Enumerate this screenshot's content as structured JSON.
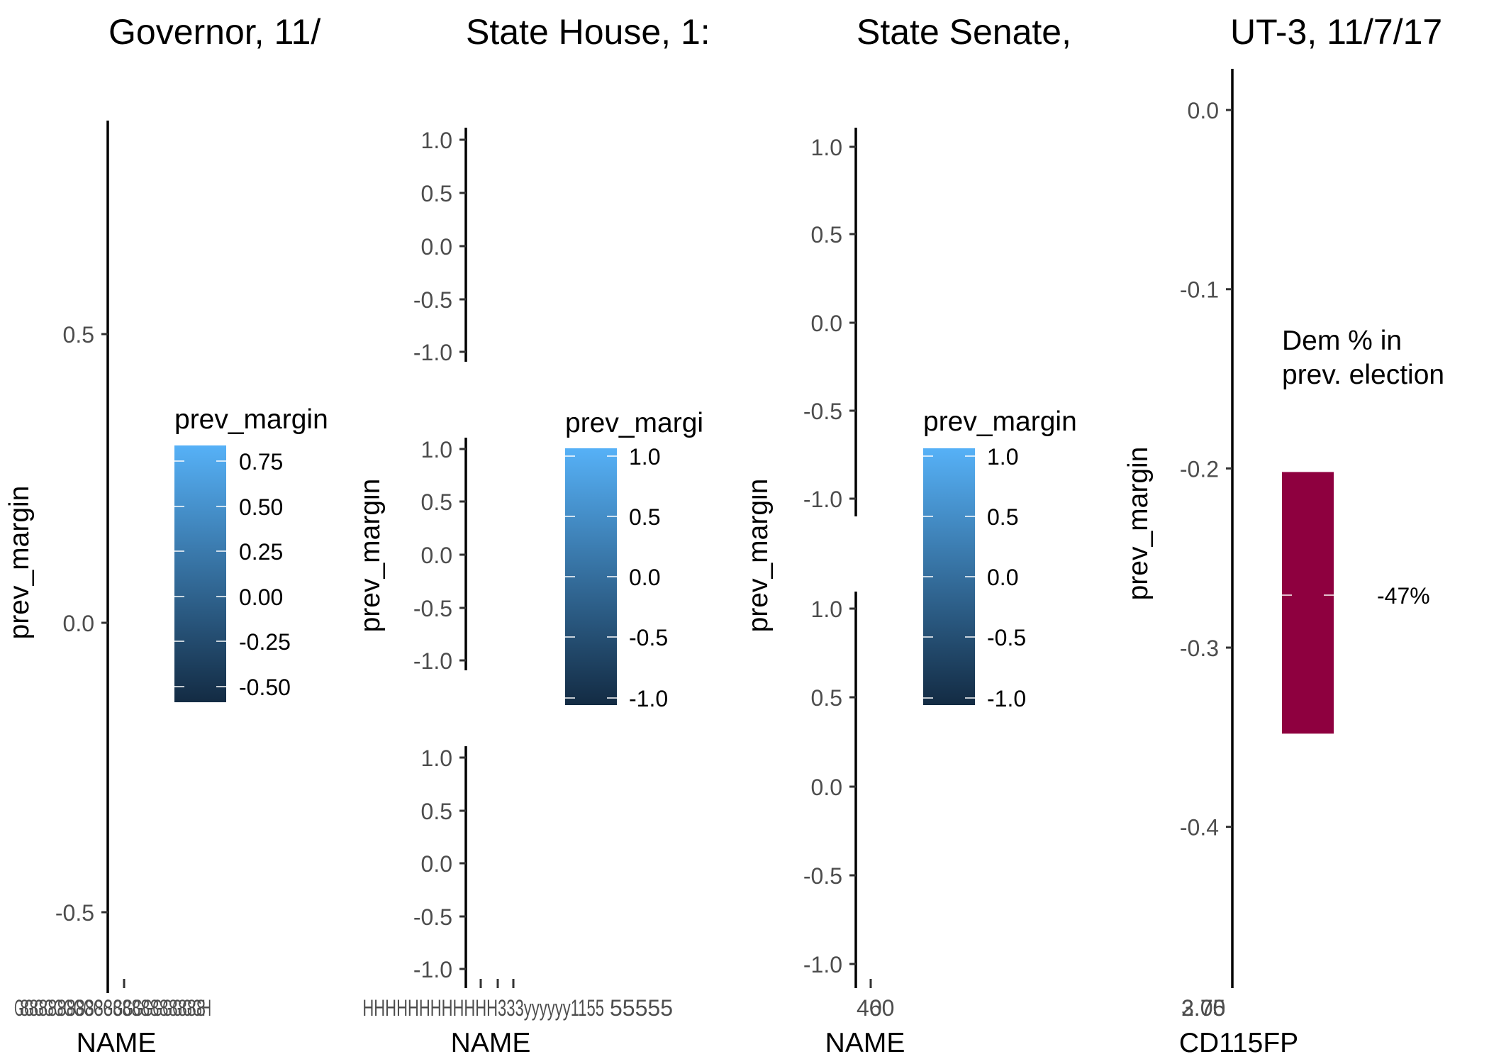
{
  "chart_data": [
    {
      "type": "bar",
      "title": "Governor, 11/",
      "ylabel": "prev_margin",
      "xlabel": "NAME",
      "ylim": [
        -0.62,
        0.87
      ],
      "yticks": [
        0.5,
        0.0,
        -0.5
      ],
      "ytick_labels": [
        "0.5",
        "0.0",
        "-0.5"
      ],
      "xtick_labels": [
        "GGGGGGGGGGGGGGGGGGGH",
        "88888888888888888888"
      ],
      "legend": {
        "title": "prev_margin",
        "scale": "continuous",
        "low_color": "#132b43",
        "high_color": "#56b1f7",
        "ticks": [
          "0.75",
          "0.50",
          "0.25",
          "0.00",
          "-0.25",
          "-0.50"
        ]
      }
    },
    {
      "type": "bar",
      "title": "State House, 1:",
      "facets": [
        {
          "ylabel": "",
          "ylim": [
            -1.1,
            1.1
          ],
          "yticks": [
            "1.0",
            "0.5",
            "0.0",
            "-0.5",
            "-1.0"
          ]
        },
        {
          "ylabel": "prev_margin",
          "ylim": [
            -1.1,
            1.1
          ],
          "yticks": [
            "1.0",
            "0.5",
            "0.0",
            "-0.5",
            "-1.0"
          ]
        },
        {
          "ylabel": "",
          "ylim": [
            -1.1,
            1.1
          ],
          "yticks": [
            "1.0",
            "0.5",
            "0.0",
            "-0.5",
            "-1.0"
          ]
        }
      ],
      "xlabel": "NAME",
      "xtick_labels": [
        "HHHHHHHHHHHHHHHHH333yyyyyy1155",
        "55555"
      ],
      "legend": {
        "title": "prev_margi",
        "scale": "continuous",
        "low_color": "#132b43",
        "high_color": "#56b1f7",
        "ticks": [
          "1.0",
          "0.5",
          "0.0",
          "-0.5",
          "-1.0"
        ]
      }
    },
    {
      "type": "bar",
      "title": "State Senate, ",
      "facets": [
        {
          "ylabel": "",
          "ylim": [
            -1.1,
            1.1
          ],
          "yticks": [
            "1.0",
            "0.5",
            "0.0",
            "-0.5",
            "-1.0"
          ]
        },
        {
          "ylabel": "prev_margin",
          "ylim": [
            -1.1,
            1.1
          ],
          "yticks": [
            "1.0",
            "0.5",
            "0.0",
            "-0.5",
            "-1.0"
          ]
        }
      ],
      "xlabel": "NAME",
      "xtick_labels": [
        "460",
        "0"
      ],
      "legend": {
        "title": "prev_margin",
        "scale": "continuous",
        "low_color": "#132b43",
        "high_color": "#56b1f7",
        "ticks": [
          "1.0",
          "0.5",
          "0.0",
          "-0.5",
          "-1.0"
        ]
      }
    },
    {
      "type": "bar",
      "title": "UT-3, 11/7/17",
      "ylabel": "prev_margin",
      "xlabel": "CD115FP",
      "ylim": [
        -0.49,
        0.023
      ],
      "yticks": [
        0.0,
        -0.1,
        -0.2,
        -0.3,
        -0.4
      ],
      "ytick_labels": [
        "0.0",
        "-0.1",
        "-0.2",
        "-0.3",
        "-0.4"
      ],
      "xtick_labels": [
        "2.75",
        "3.00"
      ],
      "bars": [
        {
          "ymin": -0.348,
          "ymax": -0.202,
          "color": "#8e003f"
        }
      ],
      "legend": {
        "title_lines": [
          "Dem % in",
          "prev. election"
        ],
        "scale": "continuous",
        "ticks": [
          "-47%"
        ]
      }
    }
  ]
}
